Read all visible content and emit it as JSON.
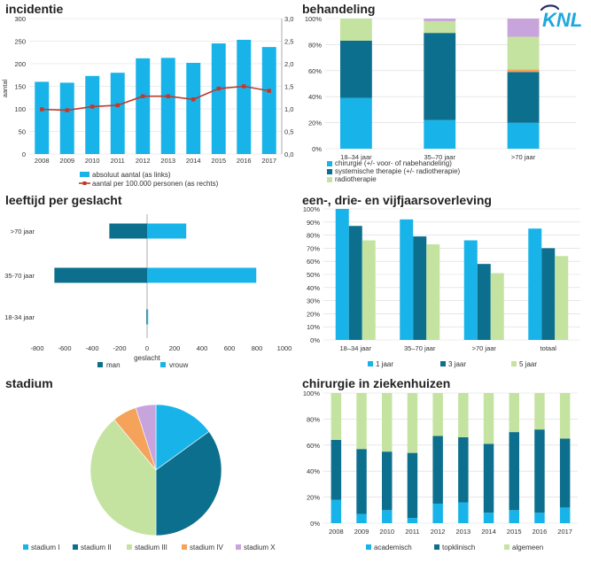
{
  "colors": {
    "light_blue": "#18b4e9",
    "dark_teal": "#0d6f8e",
    "light_green": "#c5e3a0",
    "orange": "#f5a25a",
    "lavender": "#c8a4dc",
    "line_red": "#c0392b",
    "logo_blue": "#1fa7df",
    "logo_navy": "#2a2f6b"
  },
  "logo": {
    "text": "KNL"
  },
  "chart_data": [
    {
      "id": "incidentie",
      "type": "bar+line",
      "title": "incidentie",
      "ylabel": "aantal",
      "categories": [
        "2008",
        "2009",
        "2010",
        "2011",
        "2012",
        "2013",
        "2014",
        "2015",
        "2016",
        "2017"
      ],
      "ylim": [
        0,
        300
      ],
      "y_ticks": [
        0,
        50,
        100,
        150,
        200,
        250,
        300
      ],
      "y2lim": [
        0,
        3.0
      ],
      "y2_ticks": [
        "0,0",
        "0,5",
        "1,0",
        "1,5",
        "2,0",
        "2,5",
        "3,0"
      ],
      "series": [
        {
          "name": "absoluut aantal (as links)",
          "type": "bar",
          "values": [
            160,
            158,
            173,
            180,
            212,
            213,
            202,
            245,
            253,
            237
          ]
        },
        {
          "name": "aantal per 100.000 personen (as rechts)",
          "type": "line",
          "axis": "right",
          "values": [
            0.99,
            0.97,
            1.05,
            1.08,
            1.28,
            1.28,
            1.21,
            1.45,
            1.5,
            1.4
          ]
        }
      ]
    },
    {
      "id": "behandeling",
      "type": "stacked_bar_percent",
      "title": "behandeling",
      "categories": [
        "18–34 jaar",
        "35–70 jaar",
        ">70 jaar"
      ],
      "y_ticks": [
        "0%",
        "20%",
        "40%",
        "60%",
        "80%",
        "100%"
      ],
      "series": [
        {
          "name": "chirurgie (+/- voor- of nabehandeling)",
          "values": [
            39,
            22,
            20
          ]
        },
        {
          "name": "systemische therapie (+/- radiotherapie)",
          "values": [
            44,
            67,
            39
          ]
        },
        {
          "name": "",
          "values": [
            0,
            0,
            2
          ]
        },
        {
          "name": "radiotherapie",
          "values": [
            17,
            9,
            25
          ]
        },
        {
          "name": "",
          "values": [
            0,
            2,
            14
          ]
        }
      ]
    },
    {
      "id": "leeftijd",
      "type": "bar_horizontal",
      "title": "leeftijd per geslacht",
      "xlabel": "geslacht",
      "categories": [
        ">70 jaar",
        "35-70 jaar",
        "18-34 jaar"
      ],
      "xlim": [
        -800,
        1000
      ],
      "x_ticks": [
        "-800",
        "-600",
        "-400",
        "-200",
        "0",
        "200",
        "400",
        "600",
        "800",
        "1000"
      ],
      "series": [
        {
          "name": "man",
          "values": [
            -275,
            -675,
            -5
          ]
        },
        {
          "name": "vrouw",
          "values": [
            285,
            795,
            8
          ]
        }
      ]
    },
    {
      "id": "overleving",
      "type": "bar",
      "title": "een-, drie- en vijfjaarsoverleving",
      "categories": [
        "18–34 jaar",
        "35–70 jaar",
        ">70 jaar",
        "totaal"
      ],
      "y_ticks": [
        "0%",
        "10%",
        "20%",
        "30%",
        "40%",
        "50%",
        "60%",
        "70%",
        "80%",
        "90%",
        "100%"
      ],
      "series": [
        {
          "name": "1 jaar",
          "values": [
            100,
            92,
            76,
            85
          ]
        },
        {
          "name": "3 jaar",
          "values": [
            87,
            79,
            58,
            70
          ]
        },
        {
          "name": "5 jaar",
          "values": [
            76,
            73,
            51,
            64
          ]
        }
      ]
    },
    {
      "id": "stadium",
      "type": "pie",
      "title": "stadium",
      "series": [
        {
          "name": "stadium I",
          "value": 15
        },
        {
          "name": "stadium II",
          "value": 35
        },
        {
          "name": "stadium III",
          "value": 39
        },
        {
          "name": "stadium IV",
          "value": 6
        },
        {
          "name": "stadium X",
          "value": 5
        }
      ]
    },
    {
      "id": "ziekenhuizen",
      "type": "stacked_bar_percent",
      "title": "chirurgie in ziekenhuizen",
      "categories": [
        "2008",
        "2009",
        "2010",
        "2011",
        "2012",
        "2013",
        "2014",
        "2015",
        "2016",
        "2017"
      ],
      "y_ticks": [
        "0%",
        "20%",
        "40%",
        "60%",
        "80%",
        "100%"
      ],
      "series": [
        {
          "name": "academisch",
          "values": [
            18,
            7,
            10,
            4,
            15,
            16,
            8,
            10,
            8,
            12
          ]
        },
        {
          "name": "topklinisch",
          "values": [
            46,
            50,
            45,
            50,
            52,
            50,
            53,
            60,
            64,
            53
          ]
        },
        {
          "name": "algemeen",
          "values": [
            36,
            43,
            45,
            46,
            33,
            34,
            39,
            30,
            28,
            35
          ]
        }
      ]
    }
  ]
}
